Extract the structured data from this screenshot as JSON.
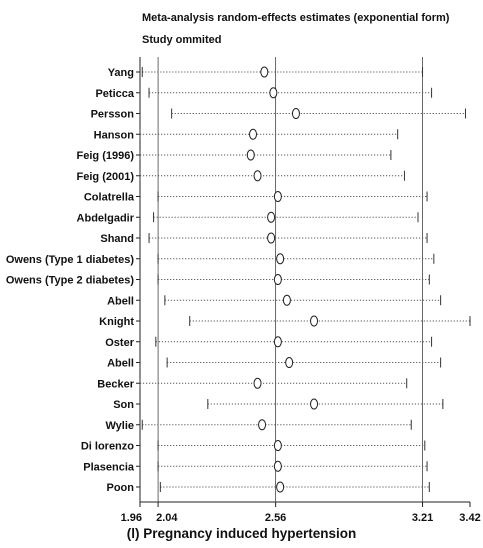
{
  "chart_data": {
    "type": "scatter",
    "title": "Meta-analysis random-effects estimates (exponential form)",
    "subtitle": "Study ommited",
    "caption": "(l) Pregnancy induced hypertension",
    "xlim": [
      1.96,
      3.42
    ],
    "x_ticks": [
      1.96,
      2.04,
      2.56,
      3.21,
      3.42
    ],
    "x_tick_labels": [
      "1.96",
      "2.04",
      "2.56",
      "3.21",
      "3.42"
    ],
    "reference_lines": [
      2.04,
      2.56,
      3.21
    ],
    "studies": [
      {
        "name": "Yang",
        "estimate": 2.51,
        "lower": 1.97,
        "upper": 3.21
      },
      {
        "name": "Peticca",
        "estimate": 2.55,
        "lower": 2.0,
        "upper": 3.25
      },
      {
        "name": "Persson",
        "estimate": 2.65,
        "lower": 2.1,
        "upper": 3.4
      },
      {
        "name": "Hanson",
        "estimate": 2.46,
        "lower": 1.96,
        "upper": 3.1
      },
      {
        "name": "Feig (1996)",
        "estimate": 2.45,
        "lower": 1.96,
        "upper": 3.07
      },
      {
        "name": "Feig (2001)",
        "estimate": 2.48,
        "lower": 1.96,
        "upper": 3.13
      },
      {
        "name": "Colatrella",
        "estimate": 2.57,
        "lower": 2.04,
        "upper": 3.23
      },
      {
        "name": "Abdelgadir",
        "estimate": 2.54,
        "lower": 2.02,
        "upper": 3.19
      },
      {
        "name": "Shand",
        "estimate": 2.54,
        "lower": 2.0,
        "upper": 3.23
      },
      {
        "name": "Owens (Type 1 diabetes)",
        "estimate": 2.58,
        "lower": 2.04,
        "upper": 3.26
      },
      {
        "name": "Owens (Type 2 diabetes)",
        "estimate": 2.57,
        "lower": 2.04,
        "upper": 3.24
      },
      {
        "name": "Abell",
        "estimate": 2.61,
        "lower": 2.07,
        "upper": 3.29
      },
      {
        "name": "Knight",
        "estimate": 2.73,
        "lower": 2.18,
        "upper": 3.42
      },
      {
        "name": "Oster",
        "estimate": 2.57,
        "lower": 2.03,
        "upper": 3.25
      },
      {
        "name": "Abell",
        "estimate": 2.62,
        "lower": 2.08,
        "upper": 3.29
      },
      {
        "name": "Becker",
        "estimate": 2.48,
        "lower": 1.96,
        "upper": 3.14
      },
      {
        "name": "Son",
        "estimate": 2.73,
        "lower": 2.26,
        "upper": 3.3
      },
      {
        "name": "Wylie",
        "estimate": 2.5,
        "lower": 1.97,
        "upper": 3.16
      },
      {
        "name": "Di lorenzo",
        "estimate": 2.57,
        "lower": 2.04,
        "upper": 3.22
      },
      {
        "name": "Plasencia",
        "estimate": 2.57,
        "lower": 2.04,
        "upper": 3.23
      },
      {
        "name": "Poon",
        "estimate": 2.58,
        "lower": 2.05,
        "upper": 3.24
      }
    ]
  }
}
